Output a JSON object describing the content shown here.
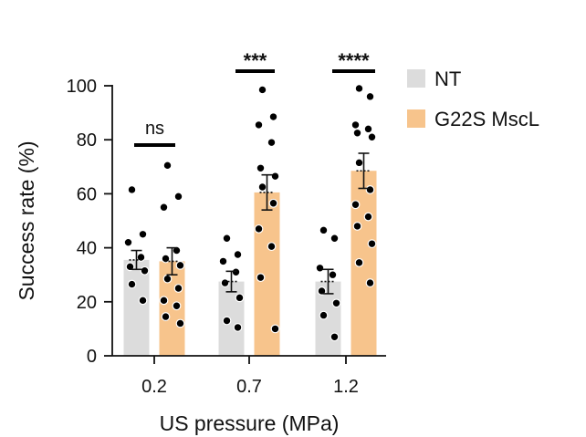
{
  "chart_data": {
    "type": "bar",
    "title": "",
    "xlabel": "US pressure (MPa)",
    "ylabel": "Success rate (%)",
    "categories": [
      "0.2",
      "0.7",
      "1.2"
    ],
    "ylim": [
      0,
      100
    ],
    "yticks": [
      "0",
      "20",
      "40",
      "60",
      "80",
      "100"
    ],
    "series": [
      {
        "name": "NT",
        "color": "#dcdcdc",
        "values": [
          35.5,
          27.5,
          27.5
        ],
        "sem": [
          3.5,
          3.8,
          4.5
        ],
        "points": [
          [
            61.5,
            45,
            42,
            36.5,
            33,
            31.5,
            26.5,
            20.5
          ],
          [
            43.5,
            37.5,
            35,
            31,
            27,
            21.5,
            13,
            10.5
          ],
          [
            46.5,
            43.5,
            32.5,
            30,
            24,
            19.5,
            15,
            7
          ]
        ]
      },
      {
        "name": "G22S MscL",
        "color": "#f7c48c",
        "values": [
          35,
          60.5,
          68.5
        ],
        "sem": [
          5,
          6.5,
          6.5
        ],
        "points": [
          [
            70.5,
            59,
            55,
            39,
            36,
            33.5,
            28.5,
            25,
            20.5,
            18.5,
            14.5,
            12
          ],
          [
            98.5,
            88.5,
            85.5,
            79,
            69.5,
            66.5,
            62.5,
            56.5,
            47,
            40.5,
            29,
            10
          ],
          [
            99,
            96,
            85.5,
            84,
            82.5,
            81,
            71.5,
            61.5,
            56,
            51.5,
            48,
            41.5,
            34.5,
            27
          ]
        ]
      }
    ],
    "significance": [
      "ns",
      "***",
      "****"
    ],
    "legend_position": "top-right"
  }
}
